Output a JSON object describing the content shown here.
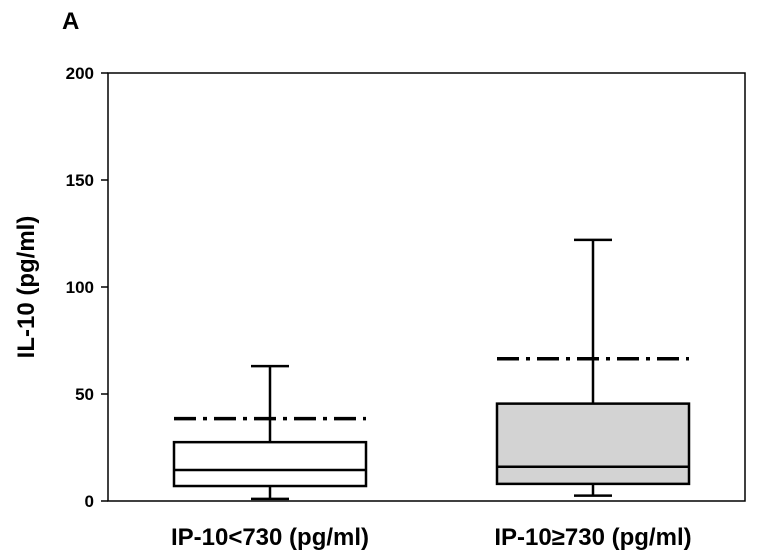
{
  "panel_label": "A",
  "chart_data": {
    "type": "box",
    "title": "",
    "xlabel": "",
    "ylabel": "IL-10 (pg/ml)",
    "ylim": [
      0,
      200
    ],
    "yticks": [
      0,
      50,
      100,
      150,
      200
    ],
    "grid": false,
    "categories": [
      "IP-10<730 (pg/ml)",
      "IP-10≥730 (pg/ml)"
    ],
    "boxes": [
      {
        "category": "IP-10<730 (pg/ml)",
        "whisker_low": 1,
        "q1": 7,
        "median": 14.5,
        "q3": 27.5,
        "whisker_high": 63,
        "mean": 38.5,
        "fill": "#ffffff"
      },
      {
        "category": "IP-10≥730 (pg/ml)",
        "whisker_low": 2.5,
        "q1": 8,
        "median": 16,
        "q3": 45.5,
        "whisker_high": 122,
        "mean": 66.5,
        "fill": "#d3d3d3"
      }
    ]
  }
}
